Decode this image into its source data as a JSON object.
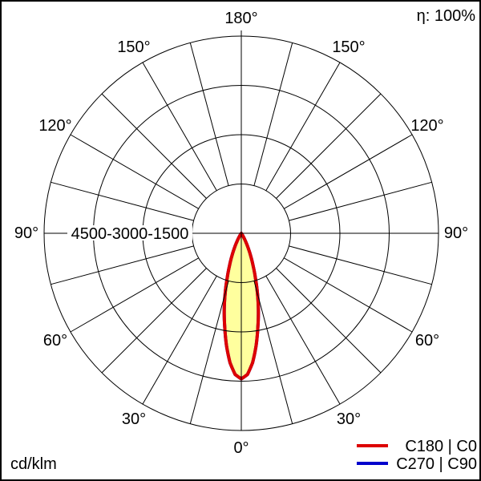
{
  "header": {
    "efficiency_label": "η: 100%",
    "eta_percent": 100
  },
  "footer": {
    "unit_label": "cd/klm"
  },
  "legend": {
    "items": [
      {
        "label": "C180 | C0",
        "color": "#dd0000"
      },
      {
        "label": "C270 | C90",
        "color": "#0000cc"
      }
    ]
  },
  "chart_data": {
    "type": "polar_intensity_distribution",
    "unit": "cd/klm",
    "scale_label": "4500-3000-1500",
    "ring_values": [
      1500,
      3000,
      4500,
      6000
    ],
    "angle_labels": [
      {
        "text": "0°",
        "deg": 0
      },
      {
        "text": "30°",
        "deg": 30
      },
      {
        "text": "60°",
        "deg": 60
      },
      {
        "text": "90°",
        "deg": 90
      },
      {
        "text": "120°",
        "deg": 120
      },
      {
        "text": "150°",
        "deg": 150
      },
      {
        "text": "180°",
        "deg": 180
      }
    ],
    "spoke_step_deg": 15,
    "grid_color": "#000000",
    "fill_color": "#ffff9e",
    "background_color": "#ffffff",
    "peak_cd_per_klm": 4430,
    "symmetric": true,
    "series": [
      {
        "name": "C180 | C0",
        "color": "#dd0000",
        "angles_deg": [
          0,
          2.5,
          5,
          7.5,
          10,
          12.5,
          15,
          17.5,
          20,
          22.5,
          25,
          27.5,
          30,
          32.5,
          35
        ],
        "values": [
          4430,
          4300,
          3950,
          3450,
          2900,
          2400,
          1900,
          1430,
          1050,
          750,
          500,
          300,
          160,
          70,
          0
        ]
      },
      {
        "name": "C270 | C90",
        "color": "#0000cc",
        "angles_deg": [
          0,
          2.5,
          5,
          7.5,
          10,
          12.5,
          15,
          17.5,
          20,
          22.5,
          25,
          27.5,
          30,
          32.5,
          35
        ],
        "values": [
          4430,
          4300,
          3950,
          3450,
          2900,
          2400,
          1900,
          1430,
          1050,
          750,
          500,
          300,
          160,
          70,
          0
        ]
      }
    ]
  }
}
